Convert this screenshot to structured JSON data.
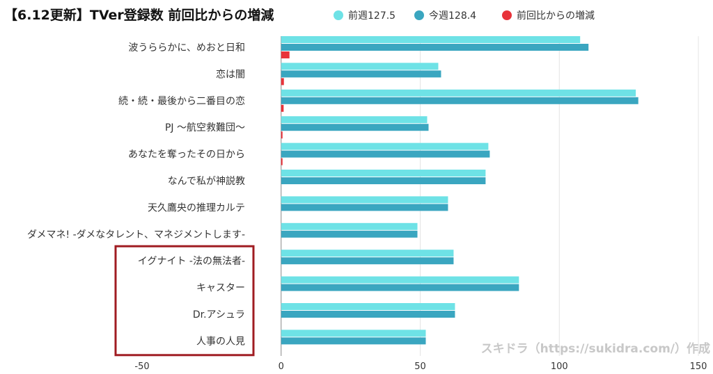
{
  "chart_data": {
    "type": "bar",
    "orientation": "horizontal",
    "title": "【6.12更新】TVer登録数 前回比からの増減",
    "categories": [
      "波うららかに、めおと日和",
      "恋は闇",
      "続・続・最後から二番目の恋",
      "PJ 〜航空救難団〜",
      "あなたを奪ったその日から",
      "なんで私が神説教",
      "天久鷹央の推理カルテ",
      "ダメマネ! -ダメなタレント、マネジメントします-",
      "イグナイト -法の無法者-",
      "キャスター",
      "Dr.アシュラ",
      "人事の人見"
    ],
    "series": [
      {
        "name": "前週127.5",
        "color": "#6ee2e6",
        "values": [
          107.5,
          56.5,
          127.5,
          52.5,
          74.5,
          73.5,
          60,
          49,
          62,
          85.5,
          62.5,
          52
        ]
      },
      {
        "name": "今週128.4",
        "color": "#3aa6c0",
        "values": [
          110.5,
          57.5,
          128.4,
          53,
          75,
          73.5,
          60,
          49,
          62,
          85.5,
          62.5,
          52
        ]
      },
      {
        "name": "前回比からの増減",
        "color": "#e8333a",
        "values": [
          3,
          1,
          0.9,
          0.5,
          0.5,
          0,
          0,
          0,
          0,
          0,
          0,
          0
        ]
      }
    ],
    "xlim": [
      -50,
      150
    ],
    "xticks": [
      "-50",
      "0",
      "50",
      "100",
      "150"
    ],
    "highlight_box": "イグナイト -法の無法者- 〜 人事の人見",
    "highlight_color": "#a01c22",
    "legend_position": "top",
    "grid": true
  },
  "watermark": "スキドラ（https://sukidra.com/）作成"
}
